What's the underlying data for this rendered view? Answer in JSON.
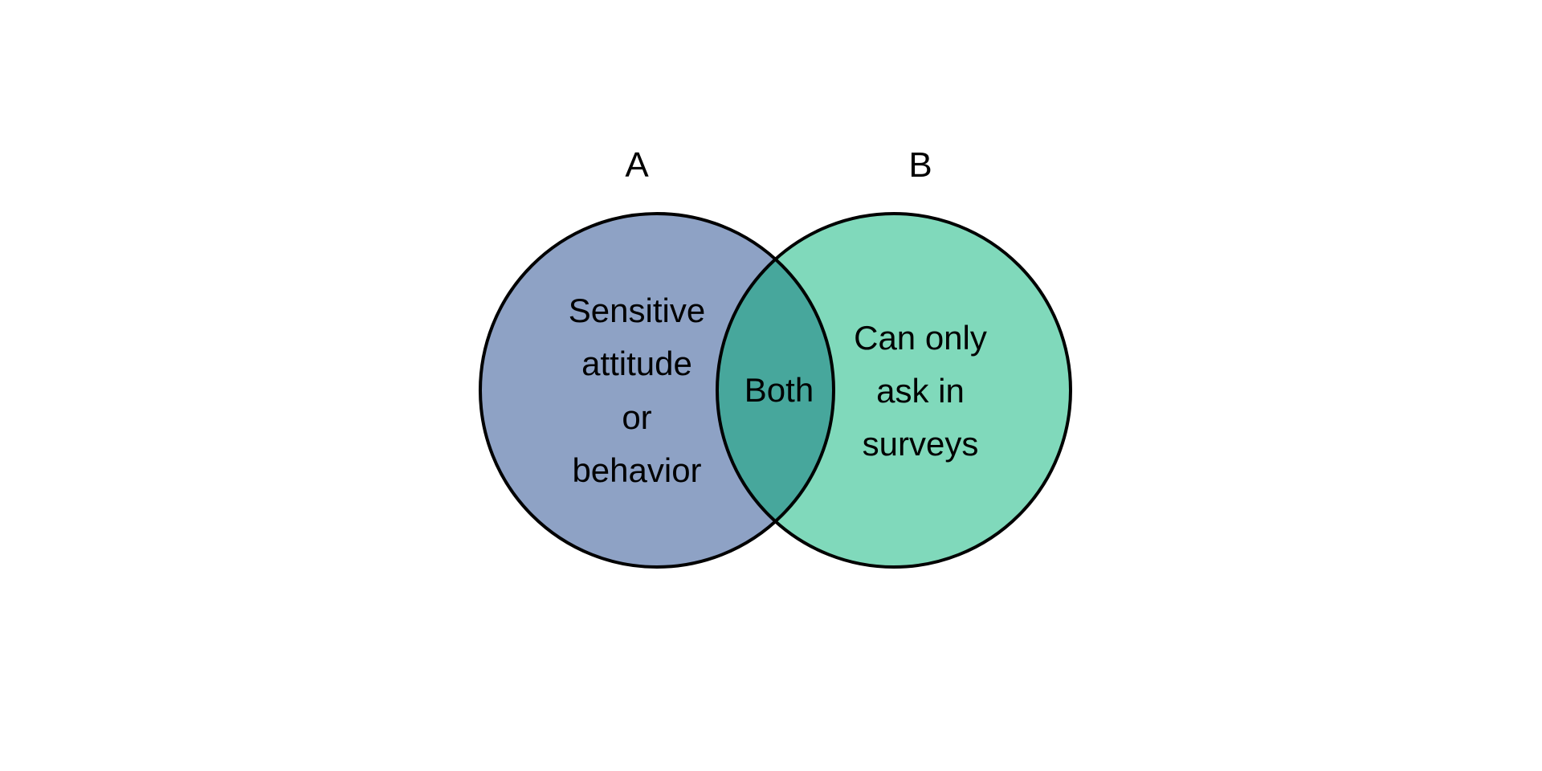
{
  "diagram": {
    "type": "venn",
    "sets": [
      {
        "id": "A",
        "label": "A",
        "region_text": [
          "Sensitive",
          "attitude",
          "or",
          "behavior"
        ],
        "color": "#8ea2c5"
      },
      {
        "id": "B",
        "label": "B",
        "region_text": [
          "Can only",
          "ask in",
          "surveys"
        ],
        "color": "#80d9bb"
      }
    ],
    "intersection": {
      "region_text": [
        "Both"
      ],
      "color": "#47a79c"
    },
    "stroke_color": "#000000",
    "background": "#ffffff"
  }
}
